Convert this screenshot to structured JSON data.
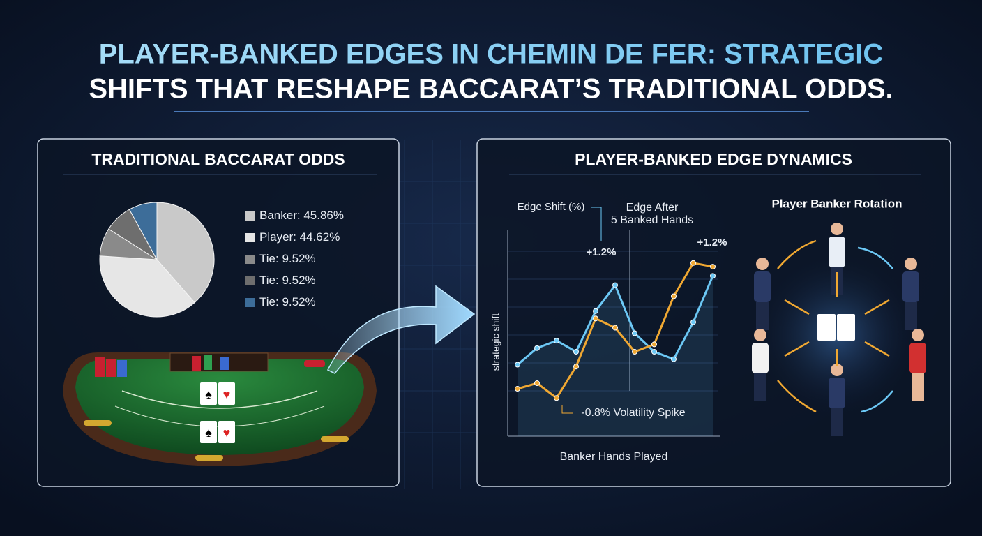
{
  "title_line1": "PLAYER-BANKED EDGES IN CHEMIN DE FER: STRATEGIC",
  "title_line2": "SHIFTS THAT RESHAPE BACCARAT’S TRADITIONAL ODDS.",
  "chart_data": [
    {
      "type": "pie",
      "title": "TRADITIONAL BACCARAT ODDS",
      "categories": [
        "Banker:",
        "Player:",
        "Tie:",
        "Tie:",
        "Tie:"
      ],
      "values": [
        45.86,
        44.62,
        9.52,
        9.52,
        9.52
      ],
      "value_labels": [
        "45.86%",
        "44.62%",
        "9.52%",
        "9.52%",
        "9.52%"
      ],
      "colors": [
        "#c9c9c9",
        "#e6e6e6",
        "#8a8a8a",
        "#6e6e6e",
        "#3d6d99"
      ]
    },
    {
      "type": "line",
      "title": "PLAYER-BANKED EDGE DYNAMICS",
      "x_label": "Banker Hands Played",
      "y_label": "strategic shift",
      "x": [
        0,
        1,
        2,
        3,
        4,
        5,
        6,
        7,
        8,
        9,
        10
      ],
      "xlim": [
        0,
        10
      ],
      "ylim": [
        0,
        10
      ],
      "series": [
        {
          "color": "#6cc8f5",
          "values": [
            3.3,
            4.2,
            4.6,
            4.0,
            6.2,
            7.6,
            5.0,
            4.0,
            3.6,
            5.6,
            8.1
          ]
        },
        {
          "color": "#f0a832",
          "values": [
            2.0,
            2.3,
            1.5,
            3.2,
            5.8,
            5.3,
            4.0,
            4.4,
            7.0,
            8.8,
            8.6
          ]
        }
      ],
      "annotations": [
        "Edge Shift (%)",
        "Edge After",
        "5 Banked Hands",
        "+1.2%",
        "+1.2%",
        "-0.8% Volatility Spike"
      ]
    }
  ],
  "rotation_title": "Player Banker Rotation"
}
